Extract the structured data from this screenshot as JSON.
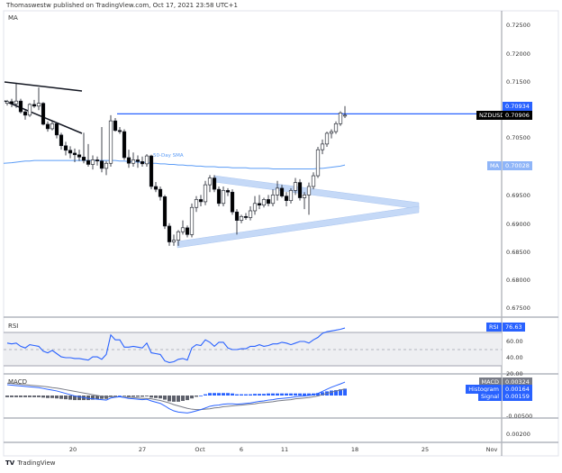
{
  "header": {
    "published": "Thomaswestw published on TradingView.com, Oct 17, 2021 23:58 UTC+1"
  },
  "main_pane": {
    "title": "MA",
    "symbol": "NZDUSD",
    "sma_label": "50-Day SMA",
    "price_axis": [
      "0.72500",
      "0.72000",
      "0.71500",
      "0.70500",
      "0.69500",
      "0.69000",
      "0.68500",
      "0.68000",
      "0.67500"
    ],
    "price_axis_values": [
      0.725,
      0.72,
      0.715,
      0.705,
      0.695,
      0.69,
      0.685,
      0.68,
      0.675
    ],
    "high_tag": "0.70934",
    "last_tag": "0.70906",
    "ma_tag_label": "MA",
    "ma_tag": "0.70028",
    "resistance_level": 0.70934
  },
  "rsi_pane": {
    "title": "RSI",
    "tag_label": "RSI",
    "value": "76.63",
    "axis": [
      "60.00",
      "40.00",
      "20.00"
    ]
  },
  "macd_pane": {
    "title": "MACD",
    "macd_label": "MACD",
    "macd_value": "0.00324",
    "hist_label": "Histogram",
    "hist_value": "0.00164",
    "signal_label": "Signal",
    "signal_value": "0.00159",
    "axis": [
      "-0.00500"
    ]
  },
  "extra_pane": {
    "axis": [
      "0.00200"
    ]
  },
  "time_axis": [
    "20",
    "27",
    "Oct",
    "6",
    "11",
    "18",
    "25",
    "Nov"
  ],
  "footer": {
    "brand": "TradingView"
  },
  "colors": {
    "accent": "#2962ff",
    "sma": "#5b9cf6",
    "band": "#c5d9f7",
    "up": "#ffffff",
    "down": "#000000",
    "hist_neg": "#5d606b",
    "hist_pos": "#2962ff"
  },
  "chart_data": {
    "type": "candlestick",
    "symbol": "NZDUSD",
    "ylim": [
      0.6725,
      0.7285
    ],
    "candles": [
      [
        0.7112,
        0.7118,
        0.7108,
        0.7115
      ],
      [
        0.7115,
        0.712,
        0.7105,
        0.7111
      ],
      [
        0.7111,
        0.7148,
        0.7104,
        0.7116
      ],
      [
        0.7116,
        0.712,
        0.7094,
        0.7097
      ],
      [
        0.7097,
        0.7102,
        0.7083,
        0.7091
      ],
      [
        0.7091,
        0.7112,
        0.7088,
        0.711
      ],
      [
        0.711,
        0.7118,
        0.7104,
        0.7107
      ],
      [
        0.7107,
        0.714,
        0.71,
        0.7112
      ],
      [
        0.7112,
        0.7114,
        0.7073,
        0.7075
      ],
      [
        0.7075,
        0.708,
        0.7062,
        0.7067
      ],
      [
        0.7067,
        0.7081,
        0.7064,
        0.7076
      ],
      [
        0.7076,
        0.7078,
        0.705,
        0.7056
      ],
      [
        0.7056,
        0.706,
        0.703,
        0.7037
      ],
      [
        0.7037,
        0.7044,
        0.702,
        0.7029
      ],
      [
        0.7029,
        0.7036,
        0.7015,
        0.7024
      ],
      [
        0.7024,
        0.7032,
        0.7008,
        0.7021
      ],
      [
        0.7021,
        0.703,
        0.701,
        0.7017
      ],
      [
        0.7017,
        0.706,
        0.7006,
        0.7011
      ],
      [
        0.7011,
        0.704,
        0.7,
        0.7004
      ],
      [
        0.7004,
        0.702,
        0.6995,
        0.7012
      ],
      [
        0.7012,
        0.7018,
        0.7002,
        0.701
      ],
      [
        0.701,
        0.707,
        0.699,
        0.6997
      ],
      [
        0.6997,
        0.701,
        0.6985,
        0.7006
      ],
      [
        0.7006,
        0.7091,
        0.7,
        0.7081
      ],
      [
        0.7081,
        0.7086,
        0.7062,
        0.7064
      ],
      [
        0.7064,
        0.707,
        0.7058,
        0.7062
      ],
      [
        0.7062,
        0.7066,
        0.7012,
        0.7016
      ],
      [
        0.7016,
        0.703,
        0.6998,
        0.7006
      ],
      [
        0.7006,
        0.7025,
        0.7,
        0.7012
      ],
      [
        0.7012,
        0.702,
        0.6998,
        0.7009
      ],
      [
        0.7009,
        0.7018,
        0.7,
        0.7005
      ],
      [
        0.7005,
        0.7022,
        0.7,
        0.7019
      ],
      [
        0.7019,
        0.7021,
        0.696,
        0.6965
      ],
      [
        0.6965,
        0.6973,
        0.6955,
        0.696
      ],
      [
        0.696,
        0.6965,
        0.694,
        0.6947
      ],
      [
        0.6947,
        0.695,
        0.689,
        0.6895
      ],
      [
        0.6895,
        0.69,
        0.686,
        0.6867
      ],
      [
        0.6867,
        0.688,
        0.686,
        0.687
      ],
      [
        0.687,
        0.6888,
        0.686,
        0.6885
      ],
      [
        0.6885,
        0.6905,
        0.688,
        0.6892
      ],
      [
        0.6892,
        0.6896,
        0.6875,
        0.688
      ],
      [
        0.688,
        0.6935,
        0.6875,
        0.6928
      ],
      [
        0.6928,
        0.6948,
        0.692,
        0.6942
      ],
      [
        0.6942,
        0.695,
        0.693,
        0.6938
      ],
      [
        0.6938,
        0.6975,
        0.6932,
        0.6968
      ],
      [
        0.6968,
        0.6985,
        0.6955,
        0.698
      ],
      [
        0.698,
        0.6985,
        0.6955,
        0.696
      ],
      [
        0.696,
        0.6965,
        0.693,
        0.6935
      ],
      [
        0.6935,
        0.6965,
        0.693,
        0.6958
      ],
      [
        0.6958,
        0.6962,
        0.6948,
        0.6955
      ],
      [
        0.6955,
        0.696,
        0.6915,
        0.692
      ],
      [
        0.692,
        0.6925,
        0.688,
        0.6905
      ],
      [
        0.6905,
        0.6915,
        0.69,
        0.6912
      ],
      [
        0.6912,
        0.6918,
        0.6906,
        0.691
      ],
      [
        0.691,
        0.693,
        0.6905,
        0.6922
      ],
      [
        0.6922,
        0.6948,
        0.6915,
        0.6935
      ],
      [
        0.6935,
        0.695,
        0.6925,
        0.6932
      ],
      [
        0.6932,
        0.6945,
        0.6928,
        0.6942
      ],
      [
        0.6942,
        0.695,
        0.693,
        0.6935
      ],
      [
        0.6935,
        0.696,
        0.693,
        0.695
      ],
      [
        0.695,
        0.6975,
        0.694,
        0.6962
      ],
      [
        0.6962,
        0.6968,
        0.6945,
        0.6948
      ],
      [
        0.6948,
        0.6955,
        0.693,
        0.694
      ],
      [
        0.694,
        0.6962,
        0.6935,
        0.6958
      ],
      [
        0.6958,
        0.698,
        0.695,
        0.6972
      ],
      [
        0.6972,
        0.6978,
        0.694,
        0.6945
      ],
      [
        0.6945,
        0.6955,
        0.6925,
        0.695
      ],
      [
        0.695,
        0.6972,
        0.6915,
        0.6965
      ],
      [
        0.6965,
        0.699,
        0.696,
        0.6984
      ],
      [
        0.6984,
        0.7035,
        0.698,
        0.703
      ],
      [
        0.703,
        0.7048,
        0.7022,
        0.704
      ],
      [
        0.704,
        0.7062,
        0.7035,
        0.7059
      ],
      [
        0.7059,
        0.7066,
        0.705,
        0.7062
      ],
      [
        0.7062,
        0.708,
        0.7058,
        0.7076
      ],
      [
        0.7076,
        0.7098,
        0.7072,
        0.7095
      ],
      [
        0.7091,
        0.7107,
        0.7086,
        0.7091
      ]
    ],
    "sma50": [
      0.7006,
      0.7007,
      0.7008,
      0.7009,
      0.701,
      0.701,
      0.7011,
      0.7011,
      0.7011,
      0.7011,
      0.7011,
      0.7011,
      0.7011,
      0.7011,
      0.7011,
      0.7011,
      0.7011,
      0.7011,
      0.7011,
      0.7011,
      0.7011,
      0.7011,
      0.7011,
      0.7011,
      0.7011,
      0.701,
      0.701,
      0.7009,
      0.7009,
      0.7008,
      0.7008,
      0.7007,
      0.7006,
      0.7006,
      0.7005,
      0.7005,
      0.7004,
      0.7004,
      0.7003,
      0.7003,
      0.7002,
      0.7002,
      0.7001,
      0.7001,
      0.7,
      0.7,
      0.7,
      0.6999,
      0.6999,
      0.6999,
      0.6998,
      0.6998,
      0.6998,
      0.6998,
      0.6997,
      0.6997,
      0.6997,
      0.6997,
      0.6997,
      0.6996,
      0.6996,
      0.6996,
      0.6996,
      0.6996,
      0.6996,
      0.6996,
      0.6996,
      0.6996,
      0.6996,
      0.6997,
      0.6997,
      0.6998,
      0.6999,
      0.7,
      0.7001,
      0.7003
    ],
    "rsi": [
      58,
      57,
      58,
      54,
      52,
      56,
      55,
      54,
      48,
      46,
      49,
      45,
      41,
      40,
      40,
      39,
      39,
      38,
      37,
      41,
      41,
      38,
      44,
      68,
      62,
      62,
      53,
      53,
      54,
      53,
      52,
      58,
      46,
      45,
      44,
      36,
      34,
      35,
      38,
      39,
      37,
      52,
      56,
      55,
      62,
      59,
      54,
      59,
      59,
      52,
      50,
      50,
      51,
      51,
      54,
      54,
      56,
      54,
      55,
      57,
      57,
      59,
      58,
      56,
      58,
      60,
      60,
      58,
      62,
      65,
      70,
      72,
      73,
      74,
      75,
      76.63
    ],
    "rsi_bands": [
      70,
      50,
      30
    ],
    "macd": [
      0.0026,
      0.0025,
      0.0024,
      0.0023,
      0.0022,
      0.0021,
      0.002,
      0.0019,
      0.0017,
      0.0015,
      0.0013,
      0.0011,
      0.0008,
      0.0005,
      0.0002,
      -0.0001,
      -0.0003,
      -0.0005,
      -0.0007,
      -0.0008,
      -0.0009,
      -0.001,
      -0.0011,
      -0.0006,
      -0.0004,
      -0.0003,
      -0.0005,
      -0.0007,
      -0.0008,
      -0.0009,
      -0.001,
      -0.0009,
      -0.0013,
      -0.0016,
      -0.0019,
      -0.0025,
      -0.0032,
      -0.0037,
      -0.004,
      -0.0041,
      -0.0042,
      -0.004,
      -0.0037,
      -0.0034,
      -0.003,
      -0.0026,
      -0.0024,
      -0.0023,
      -0.0021,
      -0.002,
      -0.002,
      -0.0021,
      -0.002,
      -0.0019,
      -0.0018,
      -0.0016,
      -0.0014,
      -0.0013,
      -0.0011,
      -0.001,
      -0.0008,
      -0.0007,
      -0.0006,
      -0.0005,
      -0.0003,
      -0.0002,
      -0.0001,
      0.0,
      0.0002,
      0.0005,
      0.001,
      0.0015,
      0.002,
      0.0024,
      0.0028,
      0.00324
    ],
    "signal": [
      0.003,
      0.0029,
      0.0028,
      0.0027,
      0.0026,
      0.0025,
      0.0024,
      0.0023,
      0.0022,
      0.0021,
      0.0019,
      0.0018,
      0.0016,
      0.0014,
      0.0012,
      0.001,
      0.0008,
      0.0006,
      0.0004,
      0.0002,
      0.0,
      -0.0002,
      -0.0003,
      -0.0003,
      -0.0003,
      -0.0003,
      -0.0004,
      -0.0004,
      -0.0005,
      -0.0006,
      -0.0007,
      -0.0007,
      -0.0008,
      -0.001,
      -0.0012,
      -0.0015,
      -0.0018,
      -0.0022,
      -0.0025,
      -0.0028,
      -0.0031,
      -0.0033,
      -0.0034,
      -0.0034,
      -0.0033,
      -0.0032,
      -0.003,
      -0.0029,
      -0.0027,
      -0.0026,
      -0.0025,
      -0.0024,
      -0.0023,
      -0.0022,
      -0.0021,
      -0.002,
      -0.0018,
      -0.0017,
      -0.0016,
      -0.0015,
      -0.0013,
      -0.0012,
      -0.0011,
      -0.001,
      -0.0008,
      -0.0007,
      -0.0006,
      -0.0005,
      -0.0003,
      -0.0001,
      0.0002,
      0.0005,
      0.0008,
      0.0011,
      0.0013,
      0.00159
    ]
  }
}
